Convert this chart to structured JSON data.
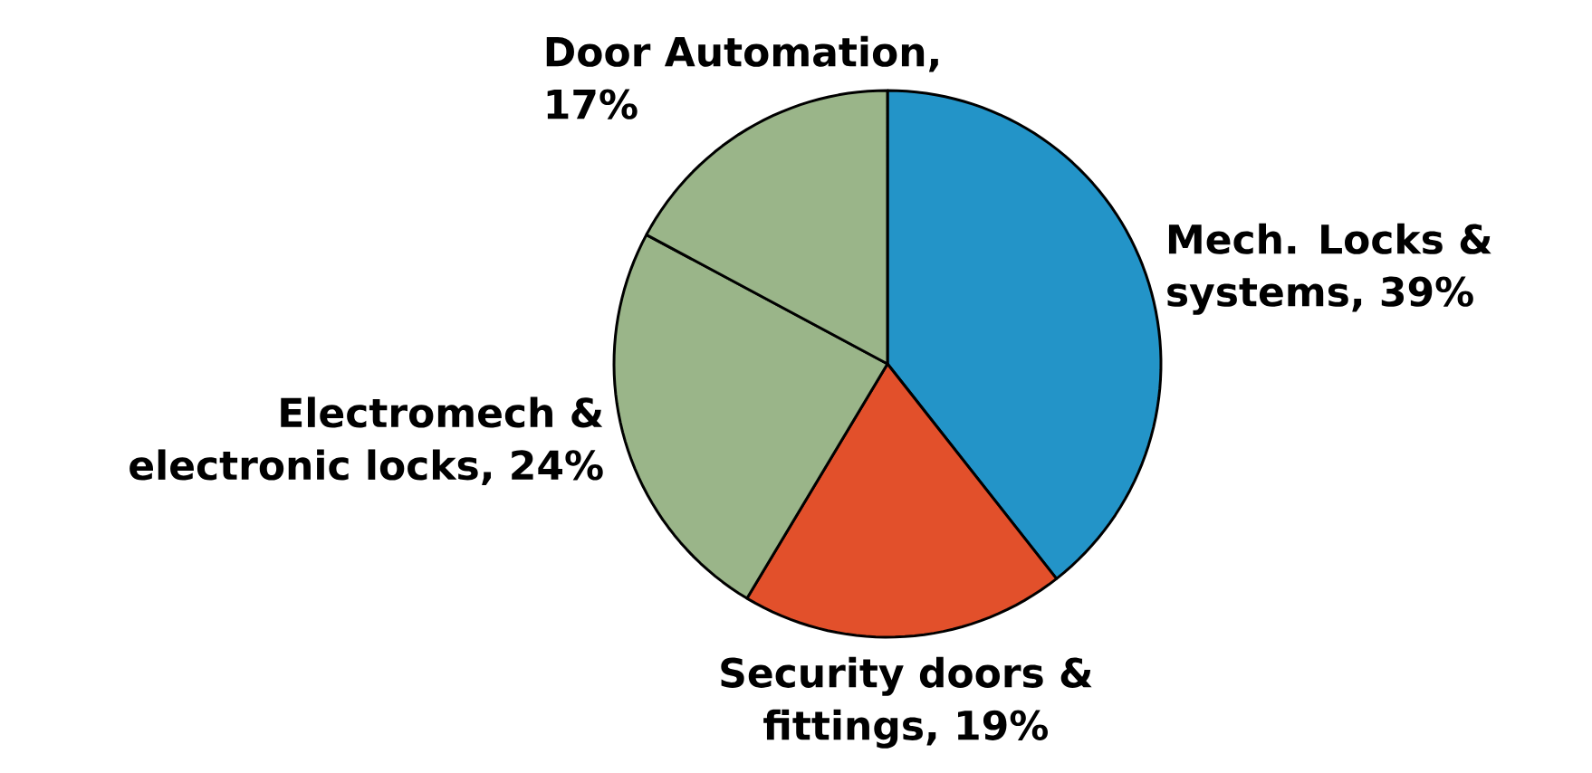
{
  "chart_data": {
    "type": "pie",
    "categories": [
      null,
      null,
      null,
      null
    ],
    "values": [
      39,
      19,
      24,
      17
    ],
    "value_labels": [
      "Mech. Locks & systems, 39%",
      "Security doors & fittings, 19%",
      "Electromech & electronic locks, 24%",
      "Door Automation, 17%"
    ],
    "colors": [
      "#2394c8",
      "#e2502b",
      "#9ab589",
      "#9ab589"
    ]
  }
}
